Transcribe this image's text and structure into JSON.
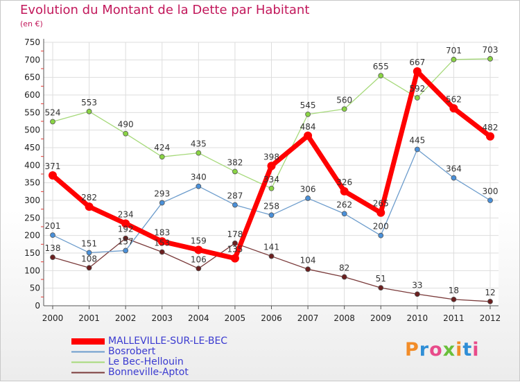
{
  "title": "Evolution du Montant de la Dette par Habitant",
  "subtitle": "(en €)",
  "logo_text": "Proxiti",
  "chart_data": {
    "type": "line",
    "title": "Evolution du Montant de la Dette par Habitant",
    "subtitle": "(en €)",
    "x": [
      "2000",
      "2001",
      "2002",
      "2003",
      "2004",
      "2005",
      "2006",
      "2007",
      "2008",
      "2009",
      "2010",
      "2011",
      "2012"
    ],
    "ylim": [
      0,
      750
    ],
    "yticks": [
      0,
      50,
      100,
      150,
      200,
      250,
      300,
      350,
      400,
      450,
      500,
      550,
      600,
      650,
      700,
      750
    ],
    "grid": true,
    "legend_position": "bottom-left",
    "series": [
      {
        "name": "MALLEVILLE-SUR-LE-BEC",
        "color": "#ff0000",
        "marker_fill": "#ff0000",
        "values": [
          371,
          282,
          234,
          183,
          159,
          135,
          398,
          484,
          326,
          265,
          667,
          562,
          482
        ]
      },
      {
        "name": "Bosrobert",
        "color": "#6c9ccc",
        "marker_fill": "#4a90d9",
        "values": [
          201,
          151,
          157,
          293,
          340,
          287,
          258,
          306,
          262,
          200,
          445,
          364,
          300
        ]
      },
      {
        "name": "Le Bec-Hellouin",
        "color": "#a6d97a",
        "marker_fill": "#8ad444",
        "values": [
          524,
          553,
          490,
          424,
          435,
          382,
          334,
          545,
          560,
          655,
          592,
          701,
          703
        ]
      },
      {
        "name": "Bonneville-Aptot",
        "color": "#7a3a3a",
        "marker_fill": "#6b1f1f",
        "values": [
          138,
          108,
          192,
          153,
          106,
          178,
          141,
          104,
          82,
          51,
          33,
          18,
          12
        ]
      }
    ]
  }
}
